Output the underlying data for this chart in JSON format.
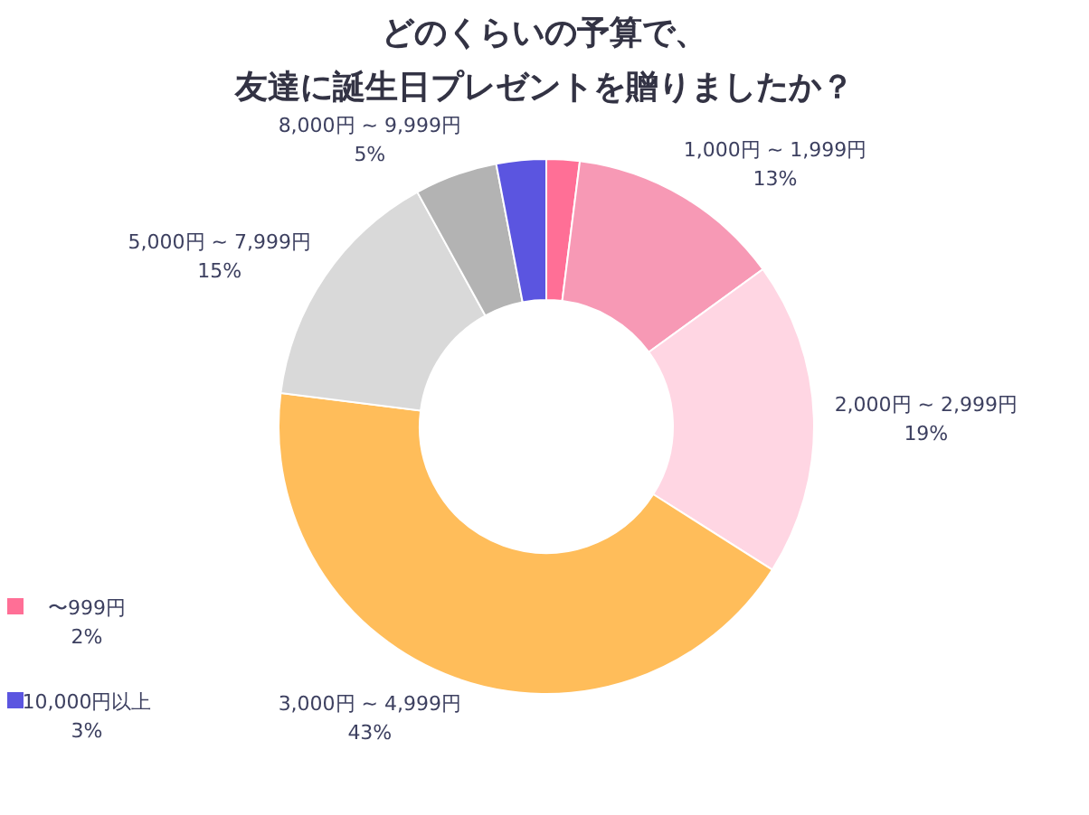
{
  "chart_data": {
    "type": "donut",
    "title": "どのくらいの予算で、",
    "subtitle": "友達に誕生日プレゼントを贈りましたか？",
    "legend": "bottom left",
    "value_labels": [
      "2%",
      "13%",
      "19%",
      "43%",
      "15%",
      "5%",
      "3%"
    ],
    "categories": [
      "〜999円",
      "1,000円 ~ 1,999円",
      "2,000円 ~ 2,999円",
      "3,000円 ~ 4,999円",
      "5,000円 ~ 7,999円",
      "8,000円 ~ 9,999円",
      "10,000円以上"
    ],
    "values": [
      2,
      13,
      19,
      43,
      15,
      5,
      3
    ],
    "colors": [
      "#ff6f96",
      "#f799b5",
      "#ffd6e3",
      "#ffbd5a",
      "#d9d9d9",
      "#b3b3b3",
      "#5b55e0"
    ]
  }
}
